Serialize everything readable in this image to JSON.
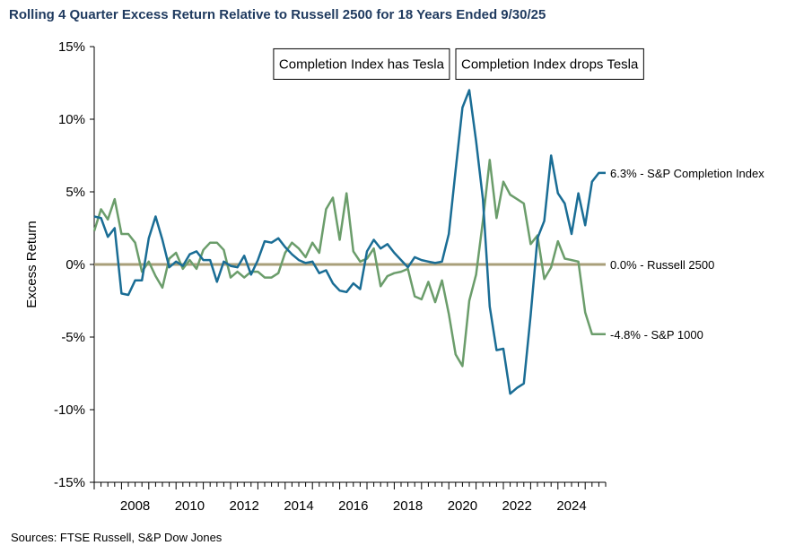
{
  "title": "Rolling 4 Quarter Excess Return Relative to Russell 2500 for 18 Years Ended 9/30/25",
  "source": "Sources: FTSE Russell, S&P Dow Jones",
  "chart_data": {
    "type": "line",
    "ylabel": "Excess Return",
    "ylim": [
      -15,
      15
    ],
    "xlim": [
      2007.0,
      2025.75
    ],
    "y_ticks": [
      "-15%",
      "-10%",
      "-5%",
      "0%",
      "5%",
      "10%",
      "15%"
    ],
    "x_ticks": [
      "2008",
      "2010",
      "2012",
      "2014",
      "2016",
      "2018",
      "2020",
      "2022",
      "2024"
    ],
    "annotations": [
      "Completion Index has Tesla",
      "Completion Index drops Tesla"
    ],
    "series": [
      {
        "name": "S&P Completion Index",
        "end_label": "6.3% - S&P Completion Index",
        "color": "#1a6d95",
        "x": [
          2007.0,
          2007.25,
          2007.5,
          2007.75,
          2008.0,
          2008.25,
          2008.5,
          2008.75,
          2009.0,
          2009.25,
          2009.5,
          2009.75,
          2010.0,
          2010.25,
          2010.5,
          2010.75,
          2011.0,
          2011.25,
          2011.5,
          2011.75,
          2012.0,
          2012.25,
          2012.5,
          2012.75,
          2013.0,
          2013.25,
          2013.5,
          2013.75,
          2014.0,
          2014.25,
          2014.5,
          2014.75,
          2015.0,
          2015.25,
          2015.5,
          2015.75,
          2016.0,
          2016.25,
          2016.5,
          2016.75,
          2017.0,
          2017.25,
          2017.5,
          2017.75,
          2018.0,
          2018.25,
          2018.5,
          2018.75,
          2019.0,
          2019.25,
          2019.5,
          2019.75,
          2020.0,
          2020.25,
          2020.5,
          2020.75,
          2021.0,
          2021.25,
          2021.5,
          2021.75,
          2022.0,
          2022.25,
          2022.5,
          2022.75,
          2023.0,
          2023.25,
          2023.5,
          2023.75,
          2024.0,
          2024.25,
          2024.5,
          2024.75,
          2025.0,
          2025.25,
          2025.5,
          2025.75
        ],
        "values": [
          3.3,
          3.2,
          1.9,
          2.5,
          -2.0,
          -2.1,
          -1.1,
          -1.1,
          1.8,
          3.3,
          1.7,
          -0.2,
          0.2,
          -0.1,
          0.7,
          0.9,
          0.3,
          0.3,
          -1.2,
          0.2,
          -0.1,
          -0.2,
          0.6,
          -0.7,
          0.3,
          1.6,
          1.5,
          1.8,
          1.2,
          0.7,
          0.3,
          0.1,
          0.2,
          -0.6,
          -0.4,
          -1.3,
          -1.8,
          -1.9,
          -1.3,
          -1.7,
          0.9,
          1.7,
          1.1,
          1.4,
          0.8,
          0.3,
          -0.2,
          0.5,
          0.3,
          0.2,
          0.1,
          0.2,
          2.1,
          6.5,
          10.8,
          12.0,
          8.5,
          4.5,
          -2.9,
          -5.9,
          -5.8,
          -8.9,
          -8.5,
          -8.2,
          -3.5,
          1.8,
          3.0,
          7.5,
          4.9,
          4.2,
          2.1,
          4.9,
          2.7,
          5.7,
          6.3,
          6.3
        ]
      },
      {
        "name": "S&P 1000",
        "end_label": "-4.8% - S&P 1000",
        "color": "#6b9d6b",
        "x": [
          2007.0,
          2007.25,
          2007.5,
          2007.75,
          2008.0,
          2008.25,
          2008.5,
          2008.75,
          2009.0,
          2009.25,
          2009.5,
          2009.75,
          2010.0,
          2010.25,
          2010.5,
          2010.75,
          2011.0,
          2011.25,
          2011.5,
          2011.75,
          2012.0,
          2012.25,
          2012.5,
          2012.75,
          2013.0,
          2013.25,
          2013.5,
          2013.75,
          2014.0,
          2014.25,
          2014.5,
          2014.75,
          2015.0,
          2015.25,
          2015.5,
          2015.75,
          2016.0,
          2016.25,
          2016.5,
          2016.75,
          2017.0,
          2017.25,
          2017.5,
          2017.75,
          2018.0,
          2018.25,
          2018.5,
          2018.75,
          2019.0,
          2019.25,
          2019.5,
          2019.75,
          2020.0,
          2020.25,
          2020.5,
          2020.75,
          2021.0,
          2021.25,
          2021.5,
          2021.75,
          2022.0,
          2022.25,
          2022.5,
          2022.75,
          2023.0,
          2023.25,
          2023.5,
          2023.75,
          2024.0,
          2024.25,
          2024.5,
          2024.75,
          2025.0,
          2025.25,
          2025.5,
          2025.75
        ],
        "values": [
          2.3,
          3.8,
          3.1,
          4.5,
          2.1,
          2.1,
          1.5,
          -0.5,
          0.2,
          -0.8,
          -1.6,
          0.4,
          0.8,
          -0.3,
          0.3,
          -0.3,
          1.0,
          1.5,
          1.5,
          1.0,
          -0.9,
          -0.5,
          -0.9,
          -0.5,
          -0.5,
          -0.9,
          -0.9,
          -0.6,
          0.8,
          1.5,
          1.1,
          0.5,
          1.5,
          0.8,
          3.8,
          4.6,
          1.7,
          4.9,
          0.9,
          0.2,
          0.4,
          1.1,
          -1.5,
          -0.8,
          -0.6,
          -0.5,
          -0.3,
          -2.2,
          -2.4,
          -1.2,
          -2.6,
          -1.1,
          -3.4,
          -6.2,
          -7.0,
          -2.5,
          -0.7,
          3.0,
          7.2,
          3.2,
          5.7,
          4.8,
          4.5,
          4.2,
          1.4,
          2.0,
          -1.0,
          -0.2,
          1.6,
          0.4,
          0.3,
          0.2,
          -3.3,
          -4.8,
          -4.8,
          -4.8
        ]
      },
      {
        "name": "Russell 2500",
        "end_label": "0.0% - Russell 2500",
        "color": "#a89f7a",
        "x": [
          2007.0,
          2025.75
        ],
        "values": [
          0.0,
          0.0
        ]
      }
    ]
  }
}
